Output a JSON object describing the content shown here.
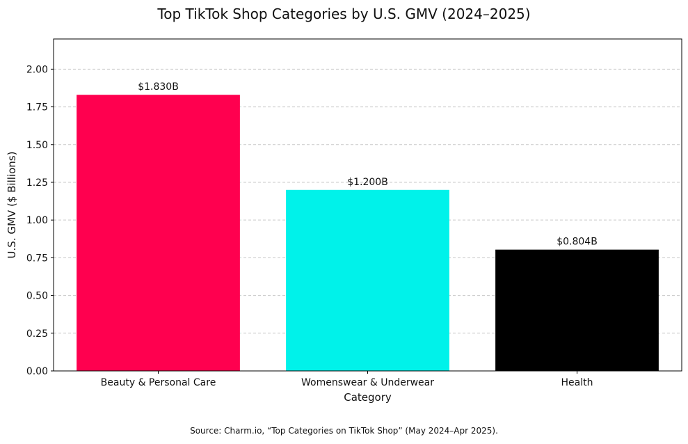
{
  "chart_data": {
    "type": "bar",
    "title": "Top TikTok Shop Categories by U.S. GMV (2024–2025)",
    "xlabel": "Category",
    "ylabel": "U.S. GMV ($ Billions)",
    "ylim": [
      0,
      2.2
    ],
    "yticks": [
      0,
      0.25,
      0.5,
      0.75,
      1.0,
      1.25,
      1.5,
      1.75,
      2.0
    ],
    "ytick_labels": [
      "0.00",
      "0.25",
      "0.50",
      "0.75",
      "1.00",
      "1.25",
      "1.50",
      "1.75",
      "2.00"
    ],
    "grid": "y-dashed",
    "categories": [
      "Beauty & Personal Care",
      "Womenswear & Underwear",
      "Health"
    ],
    "values": [
      1.83,
      1.2,
      0.804
    ],
    "data_labels": [
      "$1.830B",
      "$1.200B",
      "$0.804B"
    ],
    "colors": [
      "#ff004f",
      "#00f2ea",
      "#000000"
    ],
    "source": "Source: Charm.io, “Top Categories on TikTok Shop” (May 2024–Apr 2025)."
  }
}
